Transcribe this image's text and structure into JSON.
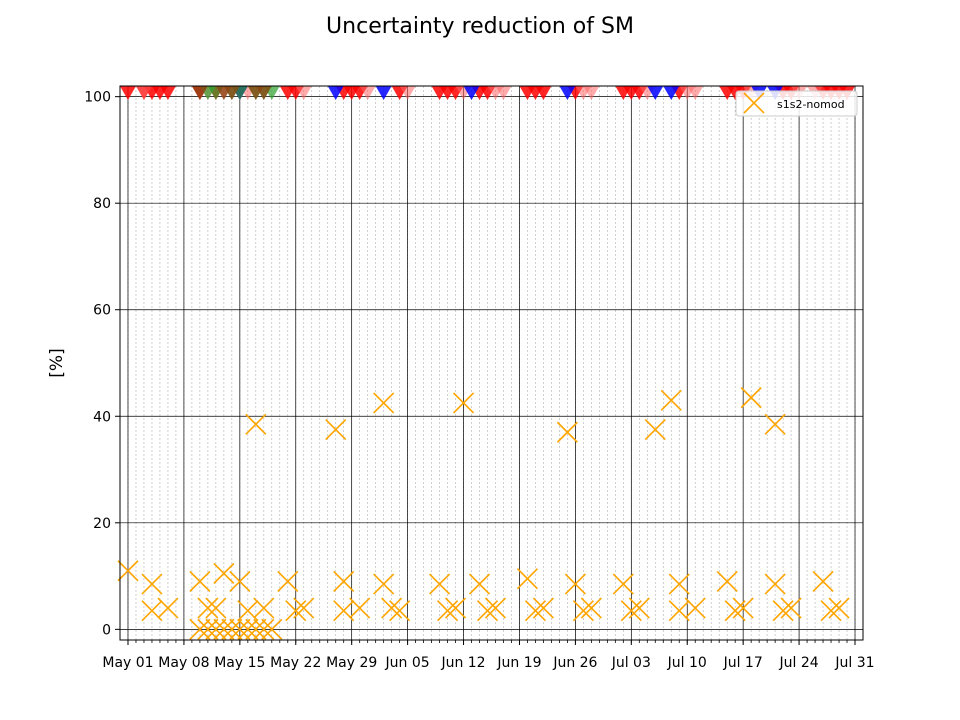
{
  "chart_data": {
    "type": "scatter",
    "title": "Uncertainty reduction of SM",
    "ylabel": "[%]",
    "xlabel": "",
    "x_axis": "date",
    "x_range": [
      "2019-05-01",
      "2019-07-31"
    ],
    "xlim": [
      "2019-04-30",
      "2019-08-01"
    ],
    "ylim": [
      -2,
      102
    ],
    "y_ticks": [
      0,
      20,
      40,
      60,
      80,
      100
    ],
    "x_tick_dates": [
      "2019-05-01",
      "2019-05-08",
      "2019-05-15",
      "2019-05-22",
      "2019-05-29",
      "2019-06-05",
      "2019-06-12",
      "2019-06-19",
      "2019-06-26",
      "2019-07-03",
      "2019-07-10",
      "2019-07-17",
      "2019-07-24",
      "2019-07-31"
    ],
    "x_tick_labels": [
      "May 01",
      "May 08",
      "May 15",
      "May 22",
      "May 29",
      "Jun 05",
      "Jun 12",
      "Jun 19",
      "Jun 26",
      "Jul 03",
      "Jul 10",
      "Jul 17",
      "Jul 24",
      "Jul 31"
    ],
    "grid": "major solid, minor daily dashed",
    "legend_position": "top-right",
    "series": [
      {
        "name": "s1s2-nomod",
        "marker": "x",
        "color": "#ffa500",
        "points": [
          [
            "2019-05-01",
            11
          ],
          [
            "2019-05-04",
            8.5
          ],
          [
            "2019-05-04",
            3.5
          ],
          [
            "2019-05-06",
            4
          ],
          [
            "2019-05-10",
            9
          ],
          [
            "2019-05-10",
            0
          ],
          [
            "2019-05-11",
            4
          ],
          [
            "2019-05-11",
            0
          ],
          [
            "2019-05-12",
            4
          ],
          [
            "2019-05-12",
            0
          ],
          [
            "2019-05-13",
            10.5
          ],
          [
            "2019-05-13",
            0
          ],
          [
            "2019-05-14",
            0
          ],
          [
            "2019-05-15",
            9
          ],
          [
            "2019-05-15",
            0
          ],
          [
            "2019-05-16",
            3.5
          ],
          [
            "2019-05-16",
            0
          ],
          [
            "2019-05-17",
            38.5
          ],
          [
            "2019-05-17",
            0
          ],
          [
            "2019-05-18",
            4
          ],
          [
            "2019-05-18",
            0
          ],
          [
            "2019-05-19",
            0
          ],
          [
            "2019-05-21",
            9
          ],
          [
            "2019-05-22",
            3.5
          ],
          [
            "2019-05-23",
            4
          ],
          [
            "2019-05-27",
            37.5
          ],
          [
            "2019-05-28",
            9
          ],
          [
            "2019-05-28",
            3.5
          ],
          [
            "2019-05-30",
            4
          ],
          [
            "2019-06-02",
            42.5
          ],
          [
            "2019-06-02",
            8.5
          ],
          [
            "2019-06-03",
            4
          ],
          [
            "2019-06-04",
            3.5
          ],
          [
            "2019-06-09",
            8.5
          ],
          [
            "2019-06-10",
            3.5
          ],
          [
            "2019-06-11",
            4
          ],
          [
            "2019-06-12",
            42.5
          ],
          [
            "2019-06-14",
            8.5
          ],
          [
            "2019-06-15",
            3.5
          ],
          [
            "2019-06-16",
            4
          ],
          [
            "2019-06-20",
            9.5
          ],
          [
            "2019-06-21",
            3.5
          ],
          [
            "2019-06-22",
            4
          ],
          [
            "2019-06-25",
            37
          ],
          [
            "2019-06-26",
            8.5
          ],
          [
            "2019-06-27",
            3.5
          ],
          [
            "2019-06-28",
            4
          ],
          [
            "2019-07-02",
            8.5
          ],
          [
            "2019-07-03",
            3.5
          ],
          [
            "2019-07-04",
            4
          ],
          [
            "2019-07-06",
            37.5
          ],
          [
            "2019-07-08",
            43
          ],
          [
            "2019-07-09",
            8.5
          ],
          [
            "2019-07-09",
            3.5
          ],
          [
            "2019-07-11",
            4
          ],
          [
            "2019-07-15",
            9
          ],
          [
            "2019-07-16",
            3.5
          ],
          [
            "2019-07-17",
            4
          ],
          [
            "2019-07-18",
            43.5
          ],
          [
            "2019-07-21",
            8.5
          ],
          [
            "2019-07-21",
            38.5
          ],
          [
            "2019-07-22",
            3.5
          ],
          [
            "2019-07-23",
            4
          ],
          [
            "2019-07-27",
            9
          ],
          [
            "2019-07-28",
            3.5
          ],
          [
            "2019-07-29",
            4
          ]
        ]
      },
      {
        "marker": "triangle-down",
        "color": "#ff0000",
        "opacity": 0.85,
        "points": [
          [
            "2019-05-01",
            101
          ],
          [
            "2019-05-03",
            101
          ],
          [
            "2019-05-04",
            101
          ],
          [
            "2019-05-05",
            101
          ],
          [
            "2019-05-06",
            101
          ],
          [
            "2019-05-10",
            101
          ],
          [
            "2019-05-12",
            101
          ],
          [
            "2019-05-15",
            101
          ],
          [
            "2019-05-21",
            101
          ],
          [
            "2019-05-22",
            101
          ],
          [
            "2019-05-28",
            101
          ],
          [
            "2019-05-29",
            101
          ],
          [
            "2019-05-30",
            101
          ],
          [
            "2019-06-04",
            101
          ],
          [
            "2019-06-09",
            101
          ],
          [
            "2019-06-10",
            101
          ],
          [
            "2019-06-11",
            101
          ],
          [
            "2019-06-14",
            101
          ],
          [
            "2019-06-15",
            101
          ],
          [
            "2019-06-20",
            101
          ],
          [
            "2019-06-21",
            101
          ],
          [
            "2019-06-22",
            101
          ],
          [
            "2019-06-26",
            101
          ],
          [
            "2019-07-02",
            101
          ],
          [
            "2019-07-03",
            101
          ],
          [
            "2019-07-04",
            101
          ],
          [
            "2019-07-09",
            101
          ],
          [
            "2019-07-15",
            101
          ],
          [
            "2019-07-16",
            101
          ],
          [
            "2019-07-17",
            101
          ],
          [
            "2019-07-22",
            101
          ],
          [
            "2019-07-23",
            101
          ],
          [
            "2019-07-27",
            101
          ],
          [
            "2019-07-28",
            101
          ],
          [
            "2019-07-29",
            101
          ],
          [
            "2019-07-30",
            101
          ]
        ]
      },
      {
        "marker": "triangle-down",
        "color": "#ff6666",
        "opacity": 0.55,
        "points": [
          [
            "2019-05-03",
            101
          ],
          [
            "2019-05-11",
            101
          ],
          [
            "2019-05-13",
            101
          ],
          [
            "2019-05-16",
            101
          ],
          [
            "2019-05-23",
            101
          ],
          [
            "2019-05-31",
            101
          ],
          [
            "2019-06-05",
            101
          ],
          [
            "2019-06-12",
            101
          ],
          [
            "2019-06-16",
            101
          ],
          [
            "2019-06-17",
            101
          ],
          [
            "2019-06-27",
            101
          ],
          [
            "2019-06-28",
            101
          ],
          [
            "2019-07-05",
            101
          ],
          [
            "2019-07-10",
            101
          ],
          [
            "2019-07-11",
            101
          ],
          [
            "2019-07-18",
            101
          ],
          [
            "2019-07-24",
            101
          ],
          [
            "2019-07-26",
            101
          ]
        ]
      },
      {
        "marker": "triangle-down",
        "color": "#0000ff",
        "opacity": 0.85,
        "points": [
          [
            "2019-05-15",
            101
          ],
          [
            "2019-05-27",
            101
          ],
          [
            "2019-06-02",
            101
          ],
          [
            "2019-06-13",
            101
          ],
          [
            "2019-06-25",
            101
          ],
          [
            "2019-07-06",
            101
          ],
          [
            "2019-07-08",
            101
          ],
          [
            "2019-07-19",
            101
          ],
          [
            "2019-07-21",
            101
          ]
        ]
      },
      {
        "marker": "triangle-down",
        "color": "#2ca02c",
        "opacity": 0.7,
        "points": [
          [
            "2019-05-11",
            101
          ],
          [
            "2019-05-12",
            101
          ],
          [
            "2019-05-14",
            101
          ],
          [
            "2019-05-15",
            101
          ],
          [
            "2019-05-17",
            101
          ],
          [
            "2019-05-18",
            101
          ],
          [
            "2019-05-19",
            101
          ]
        ]
      },
      {
        "marker": "triangle-down",
        "color": "#8b4513",
        "opacity": 0.8,
        "points": [
          [
            "2019-05-10",
            101
          ],
          [
            "2019-05-13",
            101
          ],
          [
            "2019-05-14",
            101
          ],
          [
            "2019-05-17",
            101
          ],
          [
            "2019-05-18",
            101
          ]
        ]
      }
    ]
  }
}
